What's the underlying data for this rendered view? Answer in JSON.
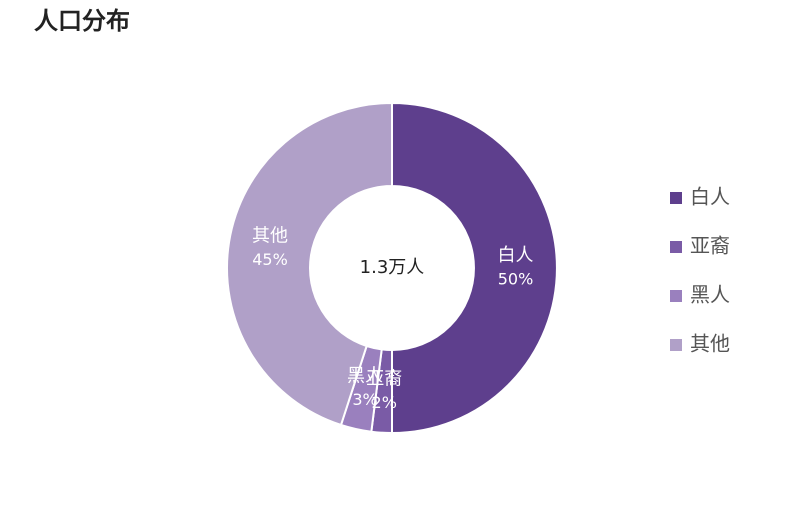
{
  "chart_data": {
    "type": "donut",
    "title": "人口分布",
    "center_label": "1.3万人",
    "categories": [
      "白人",
      "亚裔",
      "黑人",
      "其他"
    ],
    "values": [
      50,
      2,
      3,
      45
    ],
    "value_labels": [
      "50%",
      "2%",
      "3%",
      "45%"
    ],
    "colors": [
      "#5e3f8d",
      "#7a5ba6",
      "#9a80be",
      "#b0a0c8"
    ],
    "legend": "right"
  }
}
